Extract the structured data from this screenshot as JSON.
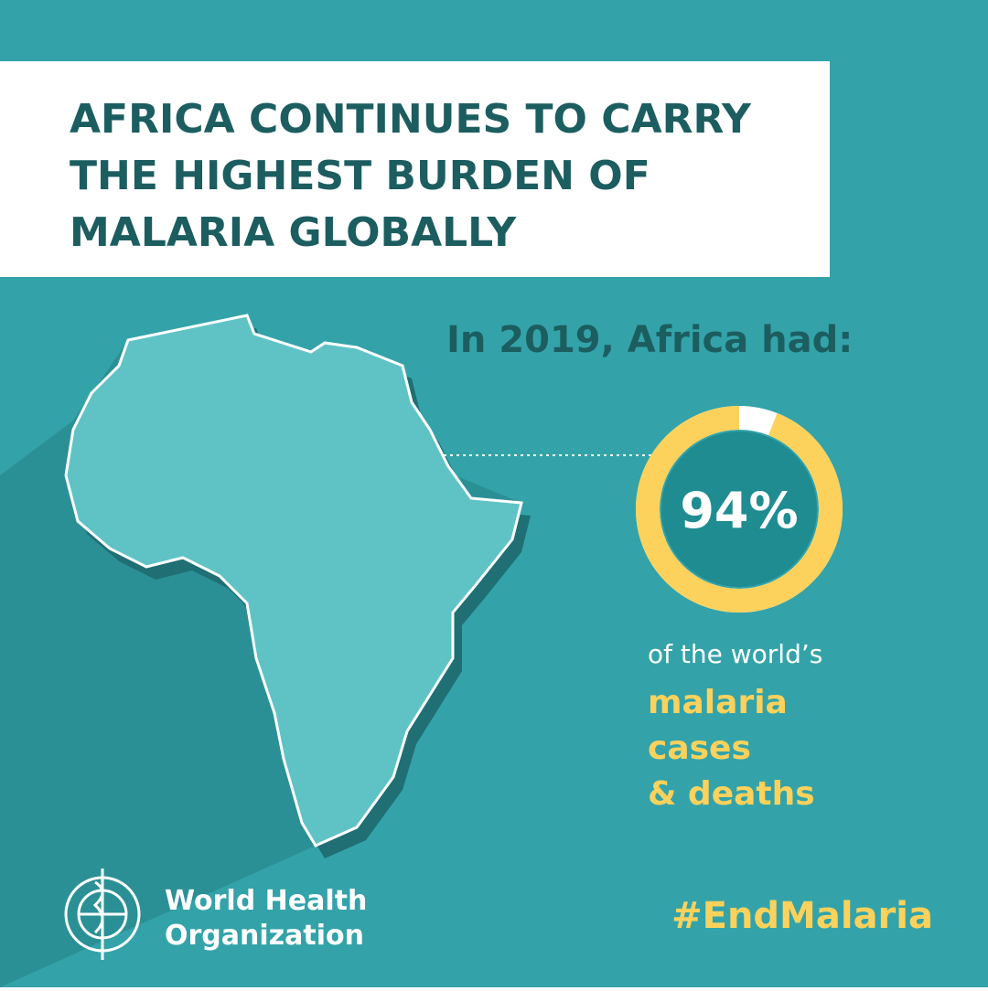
{
  "header": {
    "title_lines": [
      "AFRICA CONTINUES TO CARRY",
      "THE HIGHEST BURDEN OF",
      "MALARIA GLOBALLY"
    ]
  },
  "lead": "In 2019, Africa had:",
  "chart_data": {
    "type": "donut",
    "values": [
      94
    ],
    "value_labels": [
      "94%"
    ],
    "color": "#fcd25c"
  },
  "caption": {
    "line": "of the world’s",
    "highlight_lines": [
      "malaria",
      "cases",
      "& deaths"
    ]
  },
  "footer": {
    "org_lines": [
      "World Health",
      "Organization"
    ],
    "hashtag": "#EndMalaria"
  }
}
